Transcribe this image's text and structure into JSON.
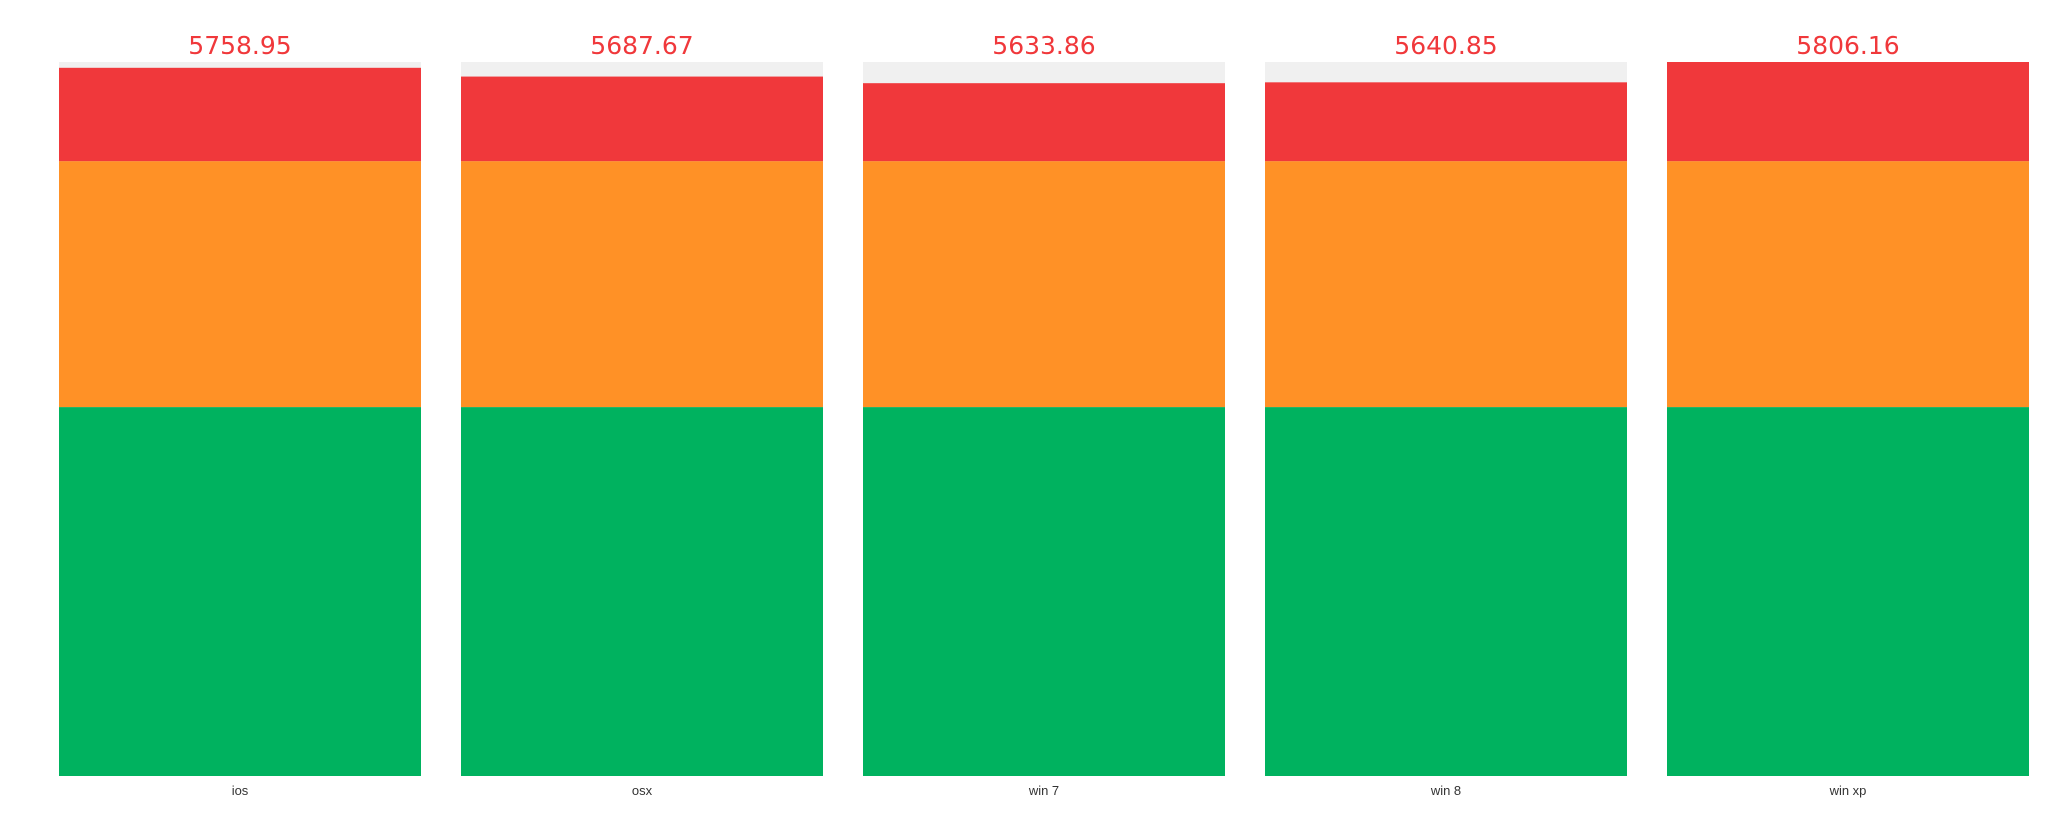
{
  "chart_data": {
    "type": "bar",
    "stacked": true,
    "categories": [
      "ios",
      "osx",
      "win 7",
      "win 8",
      "win xp"
    ],
    "totals": [
      "5758.95",
      "5687.67",
      "5633.86",
      "5640.85",
      "5806.16"
    ],
    "values": [
      5758.95,
      5687.67,
      5633.86,
      5640.85,
      5806.16
    ],
    "ylim": [
      0,
      5806.16
    ],
    "bands": [
      {
        "from": 0,
        "to": 3000,
        "color": "#00b25f"
      },
      {
        "from": 3000,
        "to": 5000,
        "color": "#ff9126"
      },
      {
        "from": 5000,
        "to": 5806.16,
        "color": "#f0383b"
      }
    ],
    "title": "",
    "xlabel": "",
    "ylabel": "",
    "grid": false,
    "legend": "none"
  },
  "colors": {
    "track": "#f0f0f0",
    "value_label": "#f0383b"
  }
}
